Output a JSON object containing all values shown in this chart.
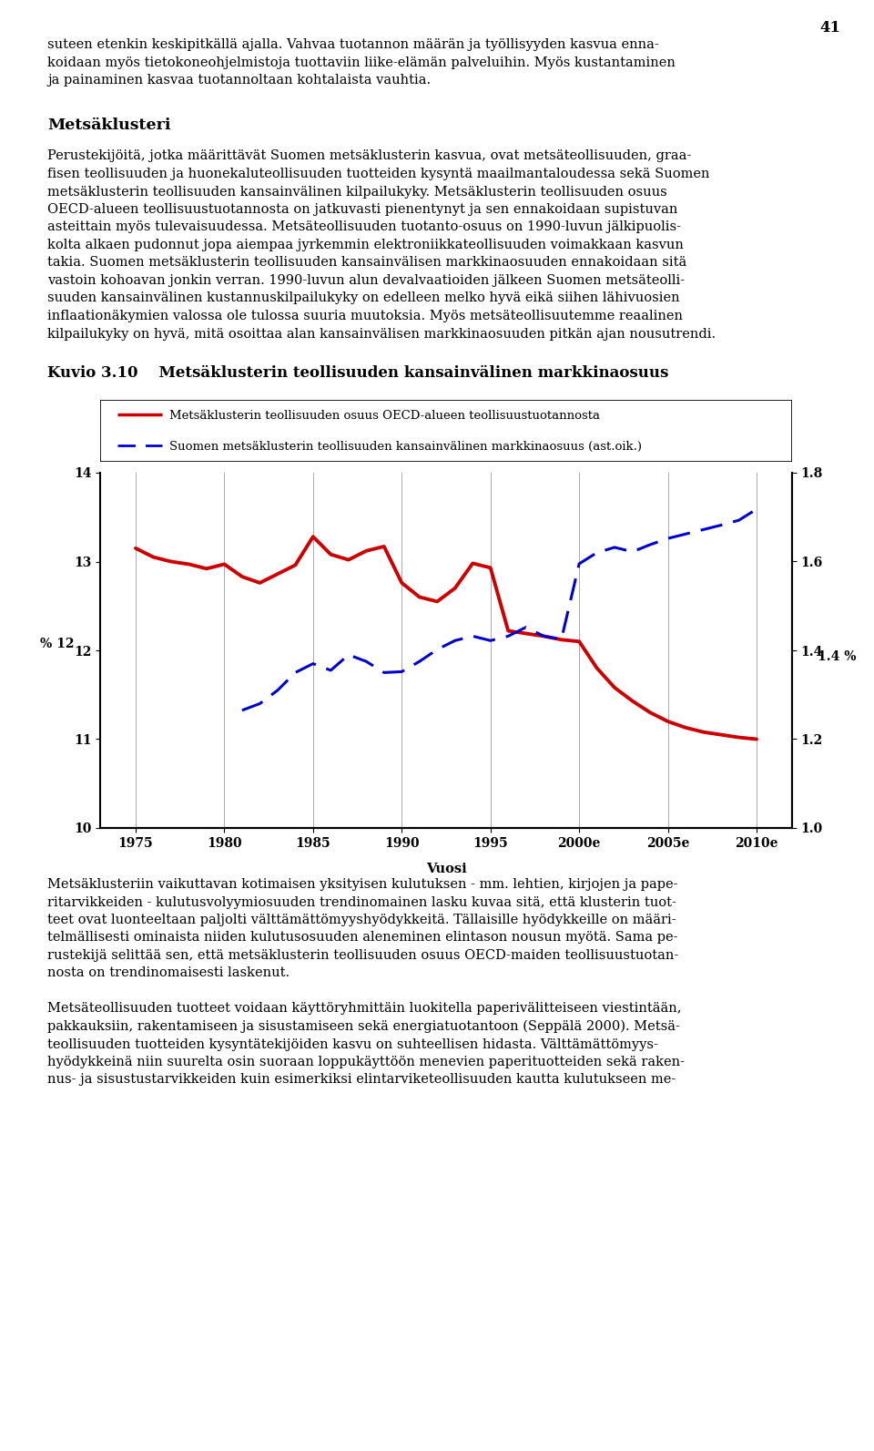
{
  "page_number": "41",
  "text_top_lines": [
    "suteen etenkin keskipitkällä ajalla. Vahvaa tuotannon määrän ja työllisyyden kasvua enna-",
    "koidaan myös tietokoneohjelmistoja tuottaviin liike-elämän palveluihin. Myös kustantaminen",
    "ja painaminen kasvaa tuotannoltaan kohtalaista vauhtia."
  ],
  "section_title": "Metsäklusteri",
  "section_text_lines": [
    "Perustekijöitä, jotka määrittävät Suomen metsäklusterin kasvua, ovat metsäteollisuuden, graa-",
    "fisen teollisuuden ja huonekaluteollisuuden tuotteiden kysyntä maailmantaloudessa sekä Suomen",
    "metsäklusterin teollisuuden kansainvälinen kilpailukyky. Metsäklusterin teollisuuden osuus",
    "OECD-alueen teollisuustuotannosta on jatkuvasti pienentynyt ja sen ennakoidaan supistuvan",
    "asteittain myös tulevaisuudessa. Metsäteollisuuden tuotanto-osuus on 1990-luvun jälkipuolis-",
    "kolta alkaen pudonnut jopa aiempaa jyrkemmin elektroniikkateollisuuden voimakkaan kasvun",
    "takia. Suomen metsäklusterin teollisuuden kansainvälisen markkinaosuuden ennakoidaan sitä",
    "vastoin kohoavan jonkin verran. 1990-luvun alun devalvaatioiden jälkeen Suomen metsäteolli-",
    "suuden kansainvälinen kustannuskilpailukyky on edelleen melko hyvä eikä siihen lähivuosien",
    "inflaationäkymien valossa ole tulossa suuria muutoksia. Myös metsäteollisuutemme reaalinen",
    "kilpailukyky on hyvä, mitä osoittaa alan kansainvälisen markkinaosuuden pitkän ajan nousutrendi."
  ],
  "chart_title": "Kuvio 3.10    Metsäklusterin teollisuuden kansainvälinen markkinaosuus",
  "legend_line1": "Metsäklusterin teollisuuden osuus OECD-alueen teollisuustuotannosta",
  "legend_line2": "Suomen metsäklusterin teollisuuden kansainvälinen markkinaosuus (ast.oik.)",
  "xlabel": "Vuosi",
  "bottom_text_lines": [
    "Metsäklusteriin vaikuttavan kotimaisen yksityisen kulutuksen - mm. lehtien, kirjojen ja pape-",
    "ritarvikkeiden - kulutusvolyymiosuuden trendinomainen lasku kuvaa sitä, että klusterin tuot-",
    "teet ovat luonteeltaan paljolti välttämättömyyshyödykkeitä. Tällaisille hyödykkeille on määri-",
    "telmällisesti ominaista niiden kulutusosuuden aleneminen elintason nousun myötä. Sama pe-",
    "rustekijä selittää sen, että metsäklusterin teollisuuden osuus OECD-maiden teollisuustuotan-",
    "nosta on trendinomaisesti laskenut.",
    "",
    "Metsäteollisuuden tuotteet voidaan käyttöryhmittäin luokitella paperivälitteiseen viestintään,",
    "pakkauksiin, rakentamiseen ja sisustamiseen sekä energiatuotantoon (Seppälä 2000). Metsä-",
    "teollisuuden tuotteiden kysyntätekijöiden kasvu on suhteellisen hidasta. Välttämättömyys-",
    "hyödykkeinä niin suurelta osin suoraan loppukäyttöön menevien paperituotteiden sekä raken-",
    "nus- ja sisustustarvikkeiden kuin esimerkiksi elintarviketeollisuuden kautta kulutukseen me-"
  ],
  "red_line_x": [
    1975,
    1976,
    1977,
    1978,
    1979,
    1980,
    1981,
    1982,
    1983,
    1984,
    1985,
    1986,
    1987,
    1988,
    1989,
    1990,
    1991,
    1992,
    1993,
    1994,
    1995,
    1996,
    1997,
    1998,
    1999,
    2000,
    2001,
    2002,
    2003,
    2004,
    2005,
    2006,
    2007,
    2008,
    2009,
    2010
  ],
  "red_line_y": [
    13.15,
    13.05,
    13.0,
    12.97,
    12.92,
    12.97,
    12.83,
    12.76,
    12.86,
    12.96,
    13.28,
    13.08,
    13.02,
    13.12,
    13.17,
    12.76,
    12.6,
    12.55,
    12.7,
    12.98,
    12.93,
    12.22,
    12.19,
    12.16,
    12.12,
    12.1,
    11.8,
    11.58,
    11.43,
    11.3,
    11.2,
    11.13,
    11.08,
    11.05,
    11.02,
    11.0
  ],
  "blue_line_x": [
    1981,
    1982,
    1983,
    1984,
    1985,
    1986,
    1987,
    1988,
    1989,
    1990,
    1991,
    1992,
    1993,
    1994,
    1995,
    1996,
    1997,
    1998,
    1999,
    2000,
    2001,
    2002,
    2003,
    2004,
    2005,
    2006,
    2007,
    2008,
    2009,
    2010
  ],
  "blue_line_y": [
    1.265,
    1.28,
    1.31,
    1.35,
    1.37,
    1.355,
    1.39,
    1.375,
    1.35,
    1.352,
    1.375,
    1.402,
    1.422,
    1.432,
    1.422,
    1.432,
    1.452,
    1.432,
    1.425,
    1.595,
    1.62,
    1.632,
    1.622,
    1.638,
    1.652,
    1.662,
    1.672,
    1.682,
    1.693,
    1.718
  ],
  "ylim_left": [
    10,
    14
  ],
  "ylim_right": [
    1.0,
    1.8
  ],
  "yticks_left": [
    10,
    11,
    12,
    13,
    14
  ],
  "yticks_right": [
    1.0,
    1.2,
    1.4,
    1.6,
    1.8
  ],
  "x_values": [
    1975,
    1980,
    1985,
    1990,
    1995,
    2000,
    2005,
    2010
  ],
  "x_labels": [
    "1975",
    "1980",
    "1985",
    "1990",
    "1995",
    "2000e",
    "2005e",
    "2010e"
  ],
  "red_color": "#cc0000",
  "blue_color": "#0000cc",
  "background_color": "#ffffff",
  "grid_color": "#aaaaaa"
}
